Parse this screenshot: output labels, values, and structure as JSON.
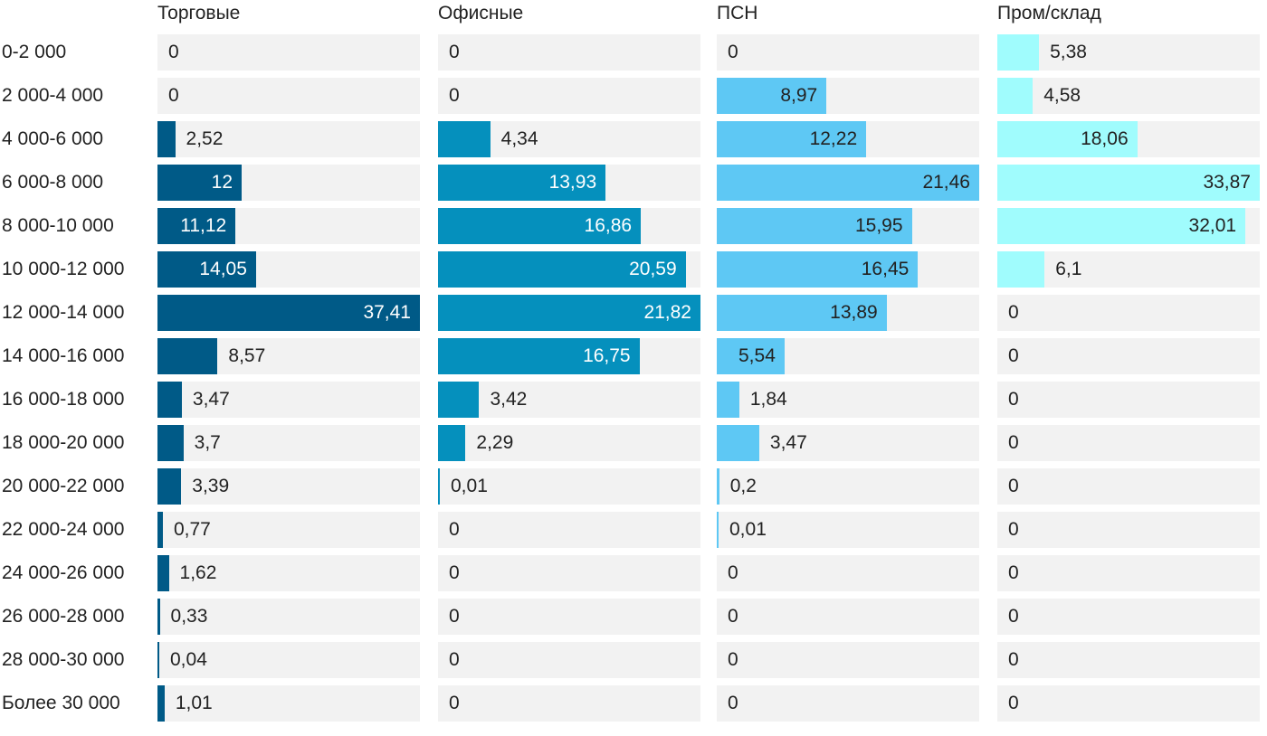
{
  "chart_data": {
    "type": "bar",
    "orientation": "horizontal",
    "layout": "small-multiples",
    "categories": [
      "0-2 000",
      "2 000-4 000",
      "4 000-6 000",
      "6 000-8 000",
      "8 000-10 000",
      "10 000-12 000",
      "12 000-14 000",
      "14 000-16 000",
      "16 000-18 000",
      "18 000-20 000",
      "20 000-22 000",
      "22 000-24 000",
      "24 000-26 000",
      "26 000-28 000",
      "28 000-30 000",
      "Более 30 000"
    ],
    "series": [
      {
        "name": "Торговые",
        "color": "#005a87",
        "label_color_inside": "#ffffff",
        "values": [
          0,
          0,
          2.52,
          12,
          11.12,
          14.05,
          37.41,
          8.57,
          3.47,
          3.7,
          3.39,
          0.77,
          1.62,
          0.33,
          0.04,
          1.01
        ],
        "labels": [
          "0",
          "0",
          "2,52",
          "12",
          "11,12",
          "14,05",
          "37,41",
          "8,57",
          "3,47",
          "3,7",
          "3,39",
          "0,77",
          "1,62",
          "0,33",
          "0,04",
          "1,01"
        ]
      },
      {
        "name": "Офисные",
        "color": "#0590bd",
        "label_color_inside": "#ffffff",
        "values": [
          0,
          0,
          4.34,
          13.93,
          16.86,
          20.59,
          21.82,
          16.75,
          3.42,
          2.29,
          0.01,
          0,
          0,
          0,
          0,
          0
        ],
        "labels": [
          "0",
          "0",
          "4,34",
          "13,93",
          "16,86",
          "20,59",
          "21,82",
          "16,75",
          "3,42",
          "2,29",
          "0,01",
          "0",
          "0",
          "0",
          "0",
          "0"
        ]
      },
      {
        "name": "ПСН",
        "color": "#5ec8f4",
        "label_color_inside": "#222222",
        "values": [
          0,
          8.97,
          12.22,
          21.46,
          15.95,
          16.45,
          13.89,
          5.54,
          1.84,
          3.47,
          0.2,
          0.01,
          0,
          0,
          0,
          0
        ],
        "labels": [
          "0",
          "8,97",
          "12,22",
          "21,46",
          "15,95",
          "16,45",
          "13,89",
          "5,54",
          "1,84",
          "3,47",
          "0,2",
          "0,01",
          "0",
          "0",
          "0",
          "0"
        ]
      },
      {
        "name": "Пром/склад",
        "color": "#a0fcfd",
        "label_color_inside": "#222222",
        "values": [
          5.38,
          4.58,
          18.06,
          33.87,
          32.01,
          6.1,
          0,
          0,
          0,
          0,
          0,
          0,
          0,
          0,
          0,
          0
        ],
        "labels": [
          "5,38",
          "4,58",
          "18,06",
          "33,87",
          "32,01",
          "6,1",
          "0",
          "0",
          "0",
          "0",
          "0",
          "0",
          "0",
          "0",
          "0",
          "0"
        ]
      }
    ],
    "title": "",
    "xlabel": "",
    "ylabel": "",
    "grid": false,
    "legend": "column-headers"
  }
}
